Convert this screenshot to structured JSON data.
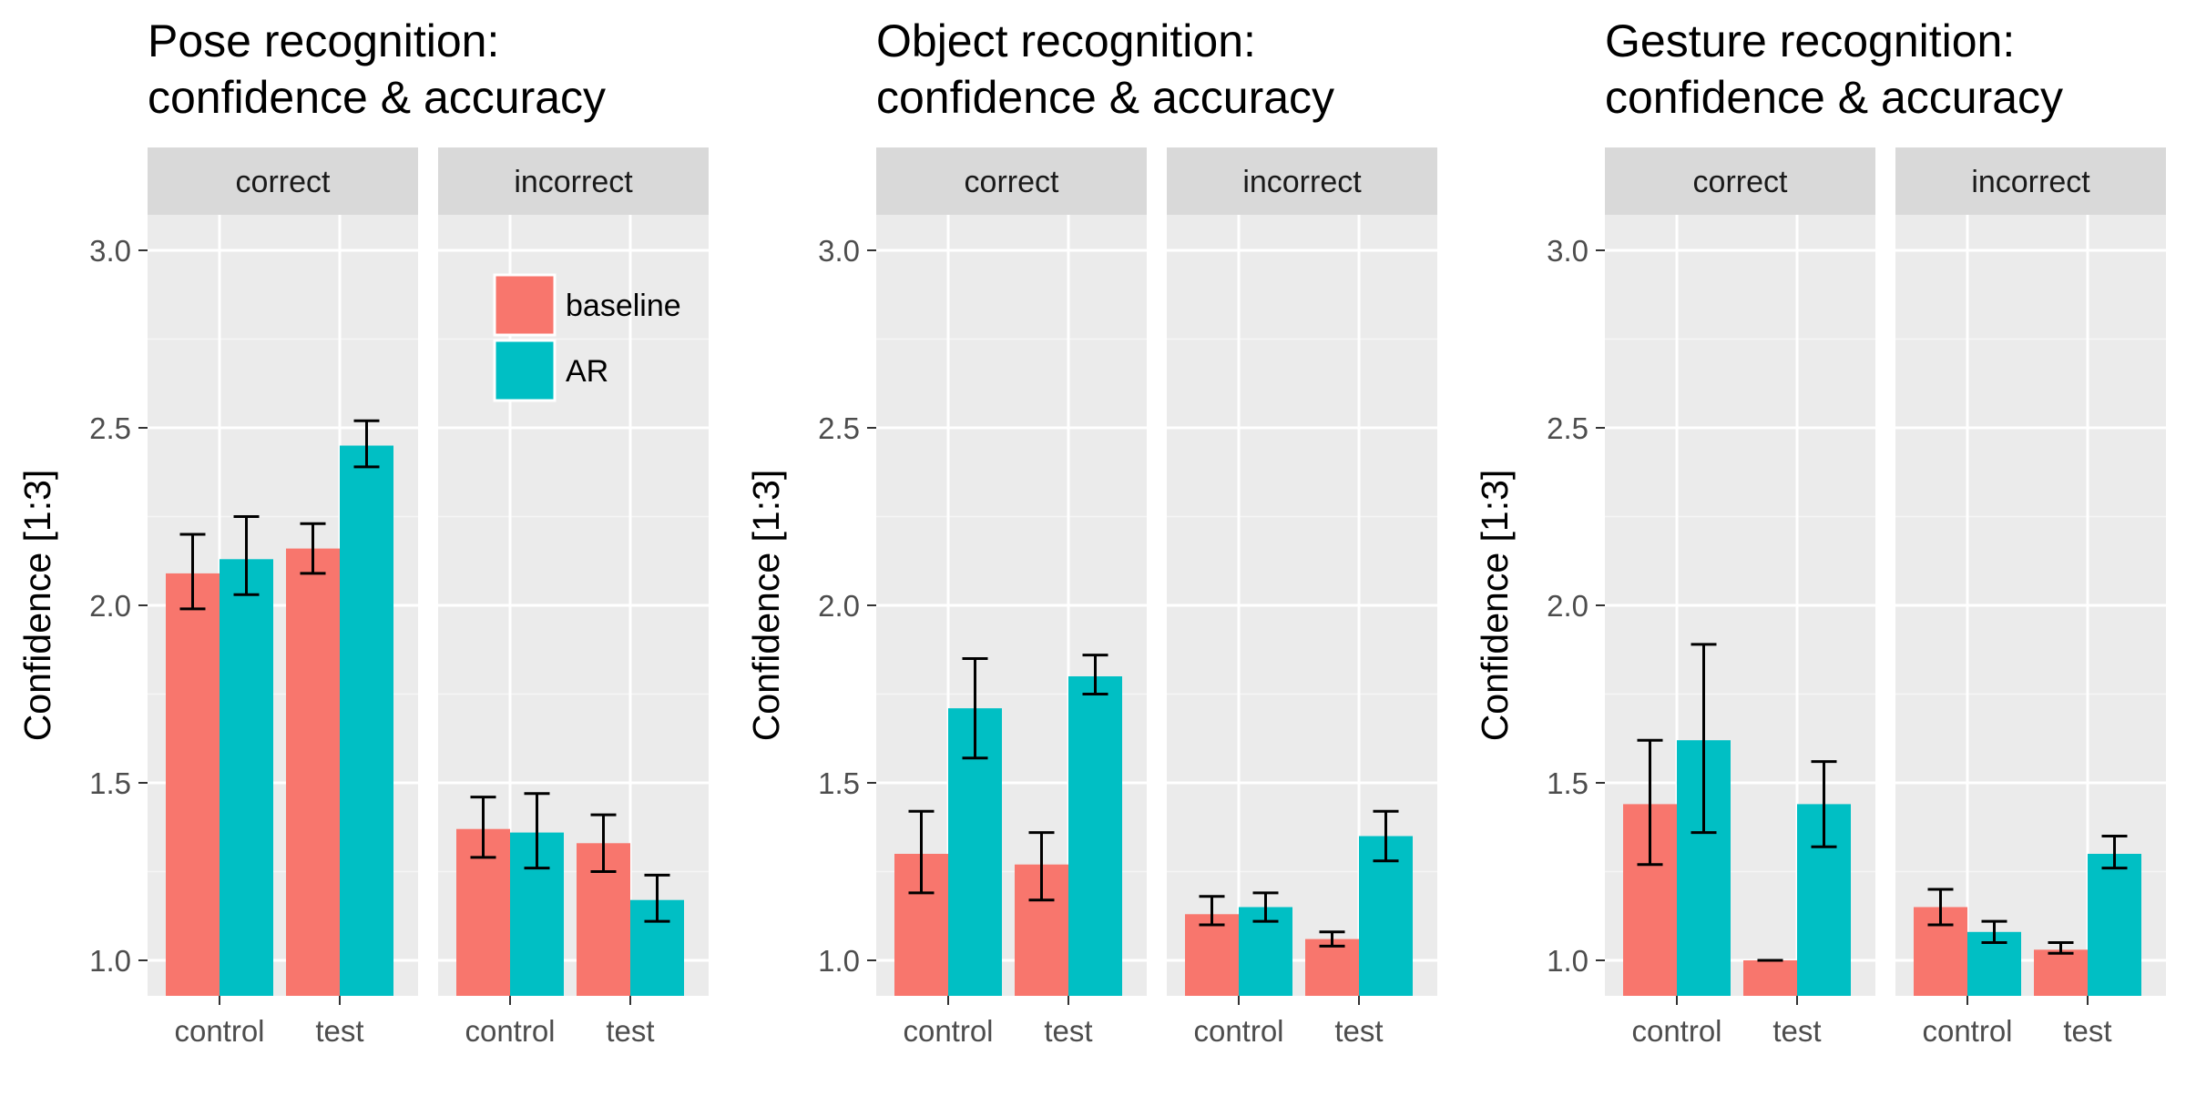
{
  "chart_data": [
    {
      "type": "bar",
      "title": [
        "Pose recognition:",
        "confidence & accuracy"
      ],
      "ylabel": "Confidence [1:3]",
      "ylim": [
        0.9,
        3.1
      ],
      "yticks": [
        1.0,
        1.5,
        2.0,
        2.5,
        3.0
      ],
      "ytick_labels": [
        "1.0",
        "1.5",
        "2.0",
        "2.5",
        "3.0"
      ],
      "grid": true,
      "panels": [
        {
          "label": "correct",
          "categories": [
            "control",
            "test"
          ],
          "series": [
            {
              "name": "baseline",
              "values": [
                2.09,
                2.16
              ],
              "err_low": [
                1.99,
                2.09
              ],
              "err_high": [
                2.2,
                2.23
              ]
            },
            {
              "name": "AR",
              "values": [
                2.13,
                2.45
              ],
              "err_low": [
                2.03,
                2.39
              ],
              "err_high": [
                2.25,
                2.52
              ]
            }
          ]
        },
        {
          "label": "incorrect",
          "categories": [
            "control",
            "test"
          ],
          "series": [
            {
              "name": "baseline",
              "values": [
                1.37,
                1.33
              ],
              "err_low": [
                1.29,
                1.25
              ],
              "err_high": [
                1.46,
                1.41
              ]
            },
            {
              "name": "AR",
              "values": [
                1.36,
                1.17
              ],
              "err_low": [
                1.26,
                1.11
              ],
              "err_high": [
                1.47,
                1.24
              ]
            }
          ]
        }
      ],
      "legend": {
        "placement": "top-right of incorrect panel",
        "entries": [
          {
            "label": "baseline",
            "color": "#F8766D"
          },
          {
            "label": "AR",
            "color": "#00BFC4"
          }
        ]
      }
    },
    {
      "type": "bar",
      "title": [
        "Object recognition:",
        "confidence & accuracy"
      ],
      "ylabel": "Confidence [1:3]",
      "ylim": [
        0.9,
        3.1
      ],
      "yticks": [
        1.0,
        1.5,
        2.0,
        2.5,
        3.0
      ],
      "ytick_labels": [
        "1.0",
        "1.5",
        "2.0",
        "2.5",
        "3.0"
      ],
      "grid": true,
      "panels": [
        {
          "label": "correct",
          "categories": [
            "control",
            "test"
          ],
          "series": [
            {
              "name": "baseline",
              "values": [
                1.3,
                1.27
              ],
              "err_low": [
                1.19,
                1.17
              ],
              "err_high": [
                1.42,
                1.36
              ]
            },
            {
              "name": "AR",
              "values": [
                1.71,
                1.8
              ],
              "err_low": [
                1.57,
                1.75
              ],
              "err_high": [
                1.85,
                1.86
              ]
            }
          ]
        },
        {
          "label": "incorrect",
          "categories": [
            "control",
            "test"
          ],
          "series": [
            {
              "name": "baseline",
              "values": [
                1.13,
                1.06
              ],
              "err_low": [
                1.1,
                1.04
              ],
              "err_high": [
                1.18,
                1.08
              ]
            },
            {
              "name": "AR",
              "values": [
                1.15,
                1.35
              ],
              "err_low": [
                1.11,
                1.28
              ],
              "err_high": [
                1.19,
                1.42
              ]
            }
          ]
        }
      ]
    },
    {
      "type": "bar",
      "title": [
        "Gesture recognition:",
        "confidence & accuracy"
      ],
      "ylabel": "Confidence [1:3]",
      "ylim": [
        0.9,
        3.1
      ],
      "yticks": [
        1.0,
        1.5,
        2.0,
        2.5,
        3.0
      ],
      "ytick_labels": [
        "1.0",
        "1.5",
        "2.0",
        "2.5",
        "3.0"
      ],
      "grid": true,
      "panels": [
        {
          "label": "correct",
          "categories": [
            "control",
            "test"
          ],
          "series": [
            {
              "name": "baseline",
              "values": [
                1.44,
                1.0
              ],
              "err_low": [
                1.27,
                1.0
              ],
              "err_high": [
                1.62,
                1.0
              ]
            },
            {
              "name": "AR",
              "values": [
                1.62,
                1.44
              ],
              "err_low": [
                1.36,
                1.32
              ],
              "err_high": [
                1.89,
                1.56
              ]
            }
          ]
        },
        {
          "label": "incorrect",
          "categories": [
            "control",
            "test"
          ],
          "series": [
            {
              "name": "baseline",
              "values": [
                1.15,
                1.03
              ],
              "err_low": [
                1.1,
                1.02
              ],
              "err_high": [
                1.2,
                1.05
              ]
            },
            {
              "name": "AR",
              "values": [
                1.08,
                1.3
              ],
              "err_low": [
                1.05,
                1.26
              ],
              "err_high": [
                1.11,
                1.35
              ]
            }
          ]
        }
      ]
    }
  ]
}
